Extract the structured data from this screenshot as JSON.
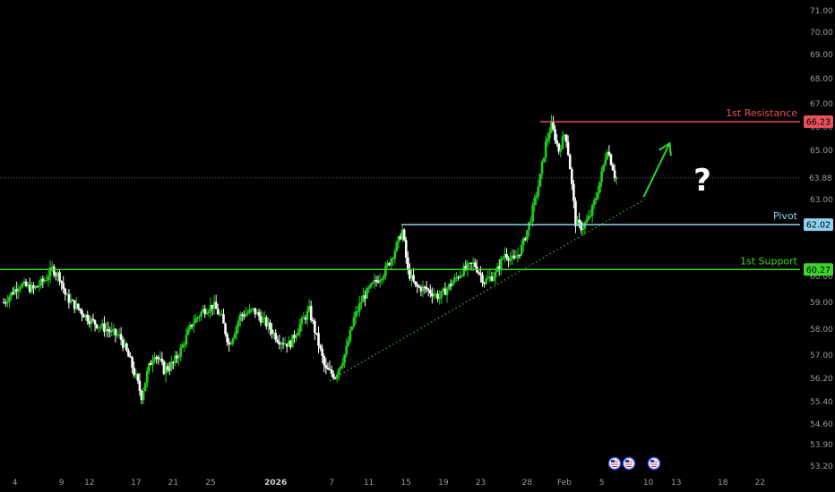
{
  "chart_data": {
    "type": "candlestick",
    "title": "",
    "xlabel": "",
    "ylabel": "",
    "ylim": [
      53.2,
      71.0
    ],
    "grid": false,
    "y_ticks": [
      {
        "v": 71.0,
        "label": "71.00"
      },
      {
        "v": 70.0,
        "label": "70.00"
      },
      {
        "v": 69.0,
        "label": "69.00"
      },
      {
        "v": 68.0,
        "label": "68.00"
      },
      {
        "v": 67.0,
        "label": "67.00"
      },
      {
        "v": 66.0,
        "label": "66.00"
      },
      {
        "v": 65.0,
        "label": "65.00"
      },
      {
        "v": 63.0,
        "label": "63.00"
      },
      {
        "v": 60.0,
        "label": "60.00"
      },
      {
        "v": 59.0,
        "label": "59.00"
      },
      {
        "v": 58.0,
        "label": "58.00"
      },
      {
        "v": 57.0,
        "label": "57.00"
      },
      {
        "v": 56.2,
        "label": "56.20"
      },
      {
        "v": 55.4,
        "label": "55.40"
      },
      {
        "v": 54.6,
        "label": "54.60"
      },
      {
        "v": 53.9,
        "label": "53.90"
      },
      {
        "v": 53.2,
        "label": "53.20"
      }
    ],
    "x_ticks": [
      {
        "label": "4",
        "day": 0
      },
      {
        "label": "9",
        "day": 5
      },
      {
        "label": "12",
        "day": 8
      },
      {
        "label": "17",
        "day": 13
      },
      {
        "label": "21",
        "day": 17
      },
      {
        "label": "25",
        "day": 21
      },
      {
        "label": "2026",
        "day": 28,
        "bold": true
      },
      {
        "label": "7",
        "day": 34
      },
      {
        "label": "11",
        "day": 38
      },
      {
        "label": "15",
        "day": 42
      },
      {
        "label": "19",
        "day": 46
      },
      {
        "label": "23",
        "day": 50
      },
      {
        "label": "28",
        "day": 55
      },
      {
        "label": "Feb",
        "day": 59
      },
      {
        "label": "5",
        "day": 63
      },
      {
        "label": "10",
        "day": 68
      },
      {
        "label": "13",
        "day": 71
      },
      {
        "label": "18",
        "day": 76
      },
      {
        "label": "22",
        "day": 80
      }
    ],
    "x_range_days": [
      -1.6,
      84.3
    ],
    "levels": [
      {
        "name": "1st Resistance",
        "value": 66.23,
        "label": "66.23",
        "color": "#e8505b",
        "start_day": 56.4
      },
      {
        "name": "Pivot",
        "value": 62.02,
        "label": "62.02",
        "color": "#8fd3f4",
        "start_day": 41.5
      },
      {
        "name": "1st Support",
        "value": 60.27,
        "label": "60.27",
        "color": "#3cd629",
        "start_day": -1.6
      }
    ],
    "current_price": {
      "value": 63.88,
      "label": "63.88"
    },
    "trendline": {
      "from": {
        "day": 33.8,
        "value": 56.12
      },
      "to": {
        "day": 67.6,
        "value": 63.0
      }
    },
    "arrow": {
      "from": {
        "day": 67.5,
        "value": 63.1
      },
      "to": {
        "day": 70.3,
        "value": 65.3
      }
    },
    "annotation_text": "?",
    "series": [
      {
        "day": -1.2,
        "v": 59.0
      },
      {
        "day": 0.5,
        "v": 59.7
      },
      {
        "day": 2.0,
        "v": 59.5
      },
      {
        "day": 3.3,
        "v": 59.9
      },
      {
        "day": 4.0,
        "v": 60.3
      },
      {
        "day": 4.8,
        "v": 60.0
      },
      {
        "day": 5.5,
        "v": 59.2
      },
      {
        "day": 6.7,
        "v": 58.8
      },
      {
        "day": 8.2,
        "v": 58.3
      },
      {
        "day": 9.8,
        "v": 58.0
      },
      {
        "day": 11.3,
        "v": 57.7
      },
      {
        "day": 12.6,
        "v": 56.6
      },
      {
        "day": 13.6,
        "v": 55.6
      },
      {
        "day": 14.3,
        "v": 56.5
      },
      {
        "day": 15.0,
        "v": 57.1
      },
      {
        "day": 16.0,
        "v": 56.5
      },
      {
        "day": 17.0,
        "v": 56.7
      },
      {
        "day": 17.8,
        "v": 57.2
      },
      {
        "day": 19.0,
        "v": 58.2
      },
      {
        "day": 20.2,
        "v": 58.7
      },
      {
        "day": 21.3,
        "v": 58.9
      },
      {
        "day": 22.2,
        "v": 58.4
      },
      {
        "day": 23.0,
        "v": 57.4
      },
      {
        "day": 24.2,
        "v": 58.5
      },
      {
        "day": 25.6,
        "v": 58.7
      },
      {
        "day": 27.0,
        "v": 58.2
      },
      {
        "day": 28.3,
        "v": 57.6
      },
      {
        "day": 29.5,
        "v": 57.4
      },
      {
        "day": 30.5,
        "v": 58.1
      },
      {
        "day": 31.6,
        "v": 58.7
      },
      {
        "day": 32.4,
        "v": 57.7
      },
      {
        "day": 33.3,
        "v": 56.5
      },
      {
        "day": 34.4,
        "v": 56.3
      },
      {
        "day": 35.5,
        "v": 57.1
      },
      {
        "day": 36.4,
        "v": 58.4
      },
      {
        "day": 37.4,
        "v": 59.2
      },
      {
        "day": 38.5,
        "v": 59.7
      },
      {
        "day": 39.7,
        "v": 60.2
      },
      {
        "day": 40.9,
        "v": 61.1
      },
      {
        "day": 41.6,
        "v": 61.8
      },
      {
        "day": 42.2,
        "v": 60.2
      },
      {
        "day": 43.0,
        "v": 59.6
      },
      {
        "day": 44.2,
        "v": 59.5
      },
      {
        "day": 45.6,
        "v": 59.2
      },
      {
        "day": 46.8,
        "v": 59.7
      },
      {
        "day": 48.0,
        "v": 60.2
      },
      {
        "day": 49.3,
        "v": 60.5
      },
      {
        "day": 50.4,
        "v": 59.8
      },
      {
        "day": 51.6,
        "v": 60.1
      },
      {
        "day": 52.6,
        "v": 60.9
      },
      {
        "day": 53.6,
        "v": 60.6
      },
      {
        "day": 54.5,
        "v": 61.2
      },
      {
        "day": 55.4,
        "v": 62.3
      },
      {
        "day": 56.3,
        "v": 63.7
      },
      {
        "day": 57.0,
        "v": 65.3
      },
      {
        "day": 57.6,
        "v": 66.1
      },
      {
        "day": 58.4,
        "v": 65.0
      },
      {
        "day": 59.1,
        "v": 65.8
      },
      {
        "day": 59.6,
        "v": 64.3
      },
      {
        "day": 60.2,
        "v": 62.1
      },
      {
        "day": 60.9,
        "v": 61.9
      },
      {
        "day": 61.7,
        "v": 62.3
      },
      {
        "day": 62.4,
        "v": 63.1
      },
      {
        "day": 63.1,
        "v": 64.2
      },
      {
        "day": 63.6,
        "v": 65.1
      },
      {
        "day": 64.1,
        "v": 64.4
      },
      {
        "day": 64.6,
        "v": 63.88
      }
    ]
  }
}
